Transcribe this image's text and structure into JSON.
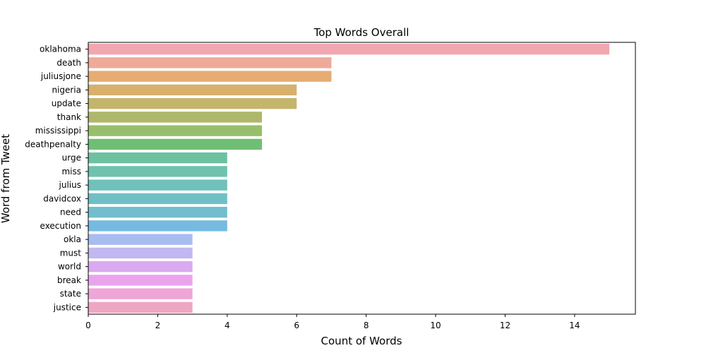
{
  "chart_data": {
    "type": "bar",
    "orientation": "horizontal",
    "title": "Top Words Overall",
    "xlabel": "Count of Words",
    "ylabel": "Word from Tweet",
    "xlim": [
      0,
      15.75
    ],
    "xticks": [
      0,
      2,
      4,
      6,
      8,
      10,
      12,
      14
    ],
    "grid": false,
    "categories": [
      "oklahoma",
      "death",
      "juliusjone",
      "nigeria",
      "update",
      "thank",
      "mississippi",
      "deathpenalty",
      "urge",
      "miss",
      "julius",
      "davidcox",
      "need",
      "execution",
      "okla",
      "must",
      "world",
      "break",
      "state",
      "justice"
    ],
    "values": [
      15,
      7,
      7,
      6,
      6,
      5,
      5,
      5,
      4,
      4,
      4,
      4,
      4,
      4,
      3,
      3,
      3,
      3,
      3,
      3
    ],
    "colors": [
      "#f2a7b0",
      "#eeaa9a",
      "#e6ac74",
      "#d7b06d",
      "#c5b46c",
      "#aeb86a",
      "#97bf6b",
      "#6ebf74",
      "#6dc1a0",
      "#6fc2ae",
      "#70c1bb",
      "#71bfc5",
      "#72bece",
      "#76bae0",
      "#a7bdf0",
      "#c3b7f1",
      "#d9aaef",
      "#eaa4ee",
      "#eea6d6",
      "#efa6c3"
    ]
  }
}
